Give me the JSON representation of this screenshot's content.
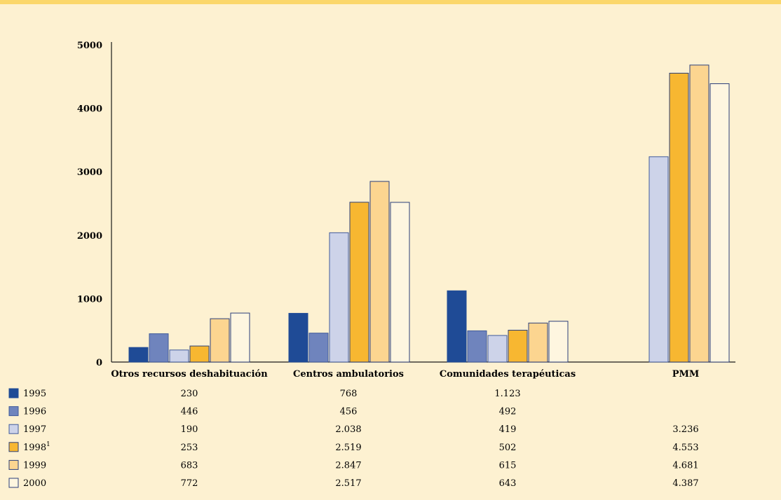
{
  "chart_data": {
    "type": "bar",
    "categories": [
      "Otros recursos deshabituación",
      "Centros ambulatorios",
      "Comunidades terapéuticas",
      "PMM"
    ],
    "ylim": [
      0,
      5000
    ],
    "yticks": [
      0,
      1000,
      2000,
      3000,
      4000,
      5000
    ],
    "grid": false,
    "series": [
      {
        "name": "1995",
        "legend_sup": "",
        "color": "#1f4b96",
        "stroke": "#1f4b96",
        "values": [
          230,
          768,
          1123,
          null
        ],
        "labels": [
          "230",
          "768",
          "1.123",
          ""
        ]
      },
      {
        "name": "1996",
        "legend_sup": "",
        "color": "#6f84bd",
        "stroke": "#3f5a9a",
        "values": [
          446,
          456,
          492,
          null
        ],
        "labels": [
          "446",
          "456",
          "492",
          ""
        ]
      },
      {
        "name": "1997",
        "legend_sup": "",
        "color": "#cdd3e9",
        "stroke": "#3f5a9a",
        "values": [
          190,
          2038,
          419,
          3236
        ],
        "labels": [
          "190",
          "2.038",
          "419",
          "3.236"
        ]
      },
      {
        "name": "1998",
        "legend_sup": "1",
        "color": "#f7b731",
        "stroke": "#2b3f7a",
        "values": [
          253,
          2519,
          502,
          4553
        ],
        "labels": [
          "253",
          "2.519",
          "502",
          "4.553"
        ]
      },
      {
        "name": "1999",
        "legend_sup": "",
        "color": "#fcd590",
        "stroke": "#2b3f7a",
        "values": [
          683,
          2847,
          615,
          4681
        ],
        "labels": [
          "683",
          "2.847",
          "615",
          "4.681"
        ]
      },
      {
        "name": "2000",
        "legend_sup": "",
        "color": "#fef6e0",
        "stroke": "#2b3f7a",
        "values": [
          772,
          2517,
          643,
          4387
        ],
        "labels": [
          "772",
          "2.517",
          "643",
          "4.387"
        ]
      }
    ]
  }
}
